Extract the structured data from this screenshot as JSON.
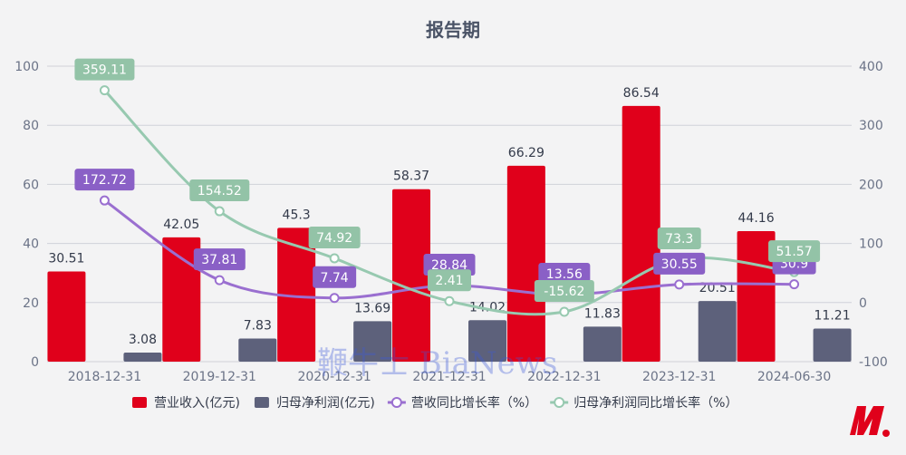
{
  "chart_data": {
    "type": "bar",
    "title": "报告期",
    "categories": [
      "2018-12-31",
      "2019-12-31",
      "2020-12-31",
      "2021-12-31",
      "2022-12-31",
      "2023-12-31",
      "2024-06-30"
    ],
    "ylim_left": [
      0,
      100
    ],
    "yticks_left": [
      0,
      20,
      40,
      60,
      80,
      100
    ],
    "ylim_right": [
      -100,
      400
    ],
    "yticks_right": [
      -100,
      0,
      100,
      200,
      300,
      400
    ],
    "grid": true,
    "legend_position": "bottom",
    "series": [
      {
        "name": "营业收入(亿元)",
        "kind": "bar",
        "axis": "left",
        "color": "#e0001b",
        "values": [
          30.51,
          42.05,
          45.3,
          58.37,
          66.29,
          86.54,
          44.16
        ]
      },
      {
        "name": "归母净利润(亿元)",
        "kind": "bar",
        "axis": "left",
        "color": "#5d617b",
        "values": [
          3.08,
          7.83,
          13.69,
          14.02,
          11.83,
          20.51,
          11.21
        ]
      },
      {
        "name": "营收同比增长率（%）",
        "kind": "line",
        "axis": "right",
        "color": "#9a6fd0",
        "label_color": "#8a60c6",
        "values": [
          172.72,
          37.81,
          7.74,
          28.84,
          13.56,
          30.55,
          30.9
        ]
      },
      {
        "name": "归母净利润同比增长率（%）",
        "kind": "line",
        "axis": "right",
        "color": "#97c9b0",
        "label_color": "#93c3a7",
        "values": [
          359.11,
          154.52,
          74.92,
          2.41,
          -15.62,
          73.3,
          51.57
        ]
      }
    ]
  },
  "watermark": "鞭牛士 BiaNews",
  "logo_label": "BiaNews logo"
}
